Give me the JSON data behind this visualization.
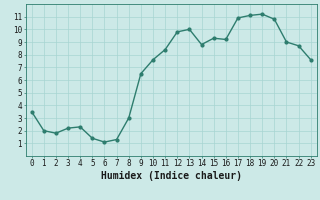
{
  "x": [
    0,
    1,
    2,
    3,
    4,
    5,
    6,
    7,
    8,
    9,
    10,
    11,
    12,
    13,
    14,
    15,
    16,
    17,
    18,
    19,
    20,
    21,
    22,
    23
  ],
  "y": [
    3.5,
    2.0,
    1.8,
    2.2,
    2.3,
    1.4,
    1.1,
    1.3,
    3.0,
    6.5,
    7.6,
    8.4,
    9.8,
    10.0,
    8.8,
    9.3,
    9.2,
    10.9,
    11.1,
    11.2,
    10.8,
    9.0,
    8.7,
    7.6
  ],
  "line_color": "#2e7d6e",
  "marker": "o",
  "marker_size": 2,
  "bg_color": "#cce9e7",
  "grid_color": "#a8d5d2",
  "xlabel": "Humidex (Indice chaleur)",
  "xlim": [
    -0.5,
    23.5
  ],
  "ylim": [
    0.0,
    12.0
  ],
  "yticks": [
    1,
    2,
    3,
    4,
    5,
    6,
    7,
    8,
    9,
    10,
    11
  ],
  "xticks": [
    0,
    1,
    2,
    3,
    4,
    5,
    6,
    7,
    8,
    9,
    10,
    11,
    12,
    13,
    14,
    15,
    16,
    17,
    18,
    19,
    20,
    21,
    22,
    23
  ],
  "tick_label_fontsize": 5.5,
  "xlabel_fontsize": 7,
  "line_width": 1.0
}
